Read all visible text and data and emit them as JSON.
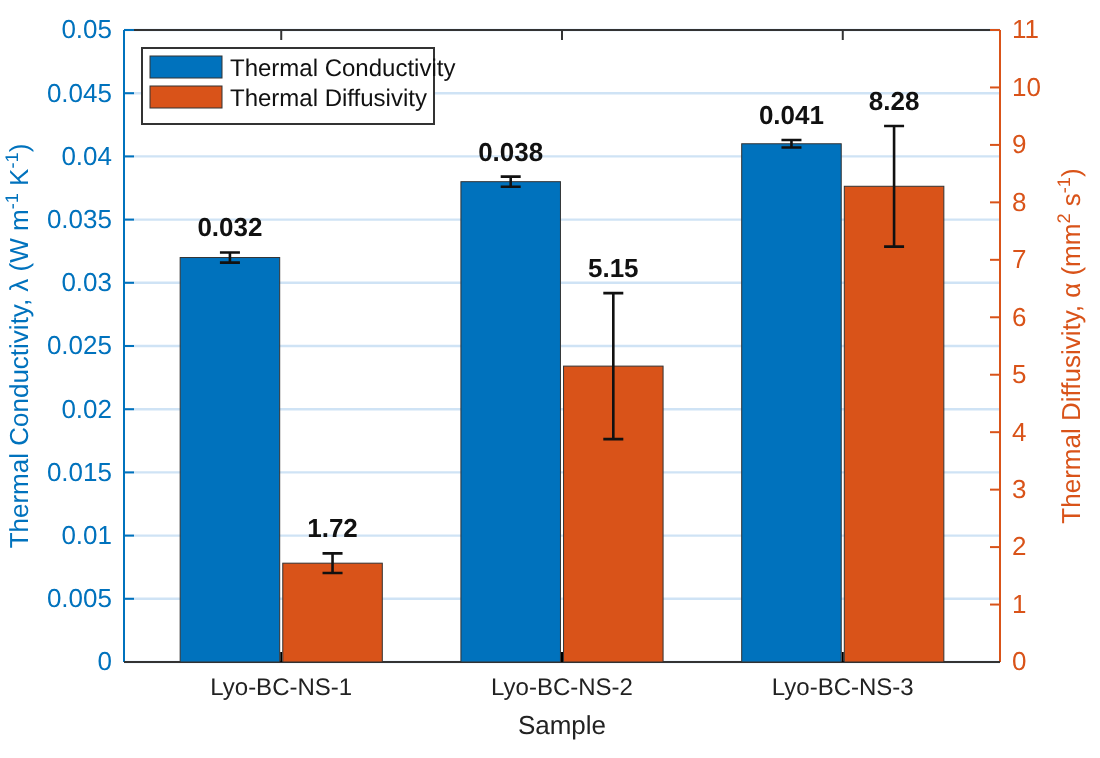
{
  "chart_data": {
    "type": "bar",
    "xlabel": "Sample",
    "ylabel": "Thermal Conductivity, λ (W m$^{-1}$ K$^{-1}$)",
    "y2label": "Thermal Diffusivity, α (mm$^{2}$ s$^{-1}$)",
    "categories": [
      "Lyo-BC-NS-1",
      "Lyo-BC-NS-2",
      "Lyo-BC-NS-3"
    ],
    "series": [
      {
        "name": "Thermal Conductivity",
        "color": "#0072bd",
        "values": [
          0.032,
          0.038,
          0.041
        ],
        "errors": [
          0.0004,
          0.0004,
          0.0003
        ]
      },
      {
        "name": "Thermal Diffusivity",
        "color": "#d95319",
        "values": [
          1.72,
          5.15,
          8.28
        ],
        "errors": [
          0.17,
          1.27,
          1.05
        ],
        "axis": "y2"
      }
    ],
    "ylim": [
      0,
      0.05
    ],
    "yticks": [
      0,
      0.005,
      0.01,
      0.015,
      0.02,
      0.025,
      0.03,
      0.035,
      0.04,
      0.045,
      0.05
    ],
    "y2lim": [
      0,
      11
    ],
    "y2ticks": [
      0,
      1,
      2,
      3,
      4,
      5,
      6,
      7,
      8,
      9,
      10,
      11
    ],
    "data_labels": true,
    "grid": "y",
    "legend": "top left"
  }
}
